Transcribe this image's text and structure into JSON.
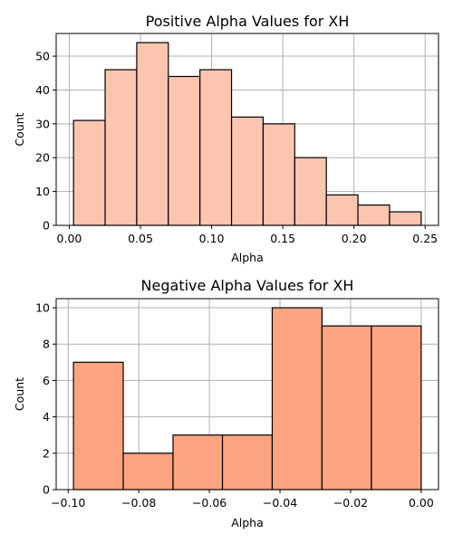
{
  "chart_data": [
    {
      "type": "bar",
      "subtype": "histogram",
      "title": "Positive Alpha Values for XH",
      "xlabel": "Alpha",
      "ylabel": "Count",
      "bin_edges": [
        0.003,
        0.0252,
        0.0474,
        0.0696,
        0.0918,
        0.114,
        0.1362,
        0.1584,
        0.1806,
        0.2028,
        0.225,
        0.2472
      ],
      "values": [
        31,
        46,
        54,
        44,
        46,
        32,
        30,
        20,
        9,
        6,
        4
      ],
      "xlim": [
        -0.0092,
        0.2594
      ],
      "ylim": [
        0,
        56.7
      ],
      "xticks": [
        0.0,
        0.05,
        0.1,
        0.15,
        0.2,
        0.25
      ],
      "xtick_labels": [
        "0.00",
        "0.05",
        "0.10",
        "0.15",
        "0.20",
        "0.25"
      ],
      "yticks": [
        0,
        10,
        20,
        30,
        40,
        50
      ],
      "ytick_labels": [
        "0",
        "10",
        "20",
        "30",
        "40",
        "50"
      ],
      "bar_color": "#fcc5b0",
      "grid": true
    },
    {
      "type": "bar",
      "subtype": "histogram",
      "title": "Negative Alpha Values for XH",
      "xlabel": "Alpha",
      "ylabel": "Count",
      "bin_edges": [
        -0.0985,
        -0.0844,
        -0.0703,
        -0.0563,
        -0.0422,
        -0.0281,
        -0.0141,
        0.0
      ],
      "values": [
        7,
        2,
        3,
        3,
        10,
        9,
        9
      ],
      "xlim": [
        -0.1034,
        0.0049
      ],
      "ylim": [
        0,
        10.5
      ],
      "xticks": [
        -0.1,
        -0.08,
        -0.06,
        -0.04,
        -0.02,
        0.0
      ],
      "xtick_labels": [
        "−0.10",
        "−0.08",
        "−0.06",
        "−0.04",
        "−0.02",
        "0.00"
      ],
      "yticks": [
        0,
        2,
        4,
        6,
        8,
        10
      ],
      "ytick_labels": [
        "0",
        "2",
        "4",
        "6",
        "8",
        "10"
      ],
      "bar_color": "#fca482",
      "grid": true
    }
  ]
}
